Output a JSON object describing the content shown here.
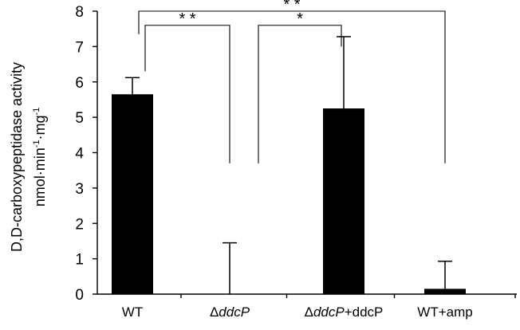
{
  "chart_data": {
    "type": "bar",
    "categories": [
      {
        "prefix": "",
        "italic": "",
        "suffix": "WT"
      },
      {
        "prefix": "Δ",
        "italic": "ddcP",
        "suffix": ""
      },
      {
        "prefix": "Δ",
        "italic": "ddcP",
        "suffix": "+ddcP"
      },
      {
        "prefix": "",
        "italic": "",
        "suffix": "WT+amp"
      }
    ],
    "values": [
      5.65,
      0.0,
      5.25,
      0.15
    ],
    "errors": [
      0.47,
      1.45,
      2.03,
      0.78
    ],
    "bar_color": "#000000",
    "ylabel_line1": "D,D-carboxypeptidase activity",
    "ylabel_line2": {
      "a": "nmol·min",
      "b": "-1",
      "c": "·mg",
      "d": "-1"
    },
    "ylim": [
      0,
      8
    ],
    "yticks": [
      "0",
      "1",
      "2",
      "3",
      "4",
      "5",
      "6",
      "7",
      "8"
    ],
    "grid": false,
    "significance": [
      {
        "from": 0,
        "to": 1,
        "label": "* *",
        "y": 7.6
      },
      {
        "from": 1,
        "to": 2,
        "label": "*",
        "y": 7.6
      },
      {
        "from": 0,
        "to": 3,
        "label": "* *",
        "y": 8.0
      }
    ]
  }
}
